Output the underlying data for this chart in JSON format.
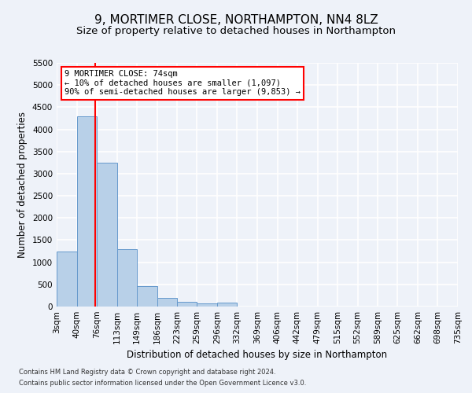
{
  "title": "9, MORTIMER CLOSE, NORTHAMPTON, NN4 8LZ",
  "subtitle": "Size of property relative to detached houses in Northampton",
  "xlabel": "Distribution of detached houses by size in Northampton",
  "ylabel": "Number of detached properties",
  "footer_line1": "Contains HM Land Registry data © Crown copyright and database right 2024.",
  "footer_line2": "Contains public sector information licensed under the Open Government Licence v3.0.",
  "annotation_line1": "9 MORTIMER CLOSE: 74sqm",
  "annotation_line2": "← 10% of detached houses are smaller (1,097)",
  "annotation_line3": "90% of semi-detached houses are larger (9,853) →",
  "property_size": 74,
  "bar_color": "#b8d0e8",
  "bar_edge_color": "#6699cc",
  "vline_color": "red",
  "annotation_box_edgecolor": "red",
  "annotation_bg": "white",
  "bin_edges": [
    3,
    40,
    76,
    113,
    149,
    186,
    223,
    259,
    296,
    332,
    369,
    406,
    442,
    479,
    515,
    552,
    589,
    625,
    662,
    698,
    735
  ],
  "bin_counts": [
    1250,
    4300,
    3250,
    1300,
    470,
    200,
    100,
    70,
    80,
    0,
    0,
    0,
    0,
    0,
    0,
    0,
    0,
    0,
    0,
    0
  ],
  "ylim": [
    0,
    5500
  ],
  "yticks": [
    0,
    500,
    1000,
    1500,
    2000,
    2500,
    3000,
    3500,
    4000,
    4500,
    5000,
    5500
  ],
  "background_color": "#eef2f9",
  "grid_color": "white",
  "title_fontsize": 11,
  "subtitle_fontsize": 9.5,
  "axis_label_fontsize": 8.5,
  "tick_fontsize": 7.5,
  "footer_fontsize": 6
}
